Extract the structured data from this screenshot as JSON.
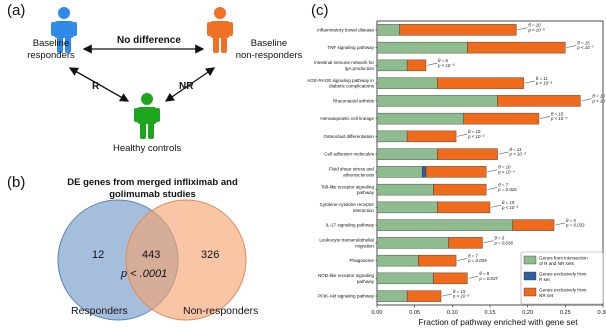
{
  "panel_a": {
    "label": "(a)",
    "responders_label_l1": "Baseline",
    "responders_label_l2": "responders",
    "nonresponders_label_l1": "Baseline",
    "nonresponders_label_l2": "non-responders",
    "no_difference": "No difference",
    "arrow_r": "R",
    "arrow_nr": "NR",
    "controls_label": "Healthy controls",
    "colors": {
      "responder": "#2e8ae6",
      "nonresponder": "#f07024",
      "control": "#1ea51e"
    }
  },
  "panel_b": {
    "label": "(b)",
    "title_l1": "DE genes from merged infliximab and",
    "title_l2": "golimumab studies",
    "left_only": "12",
    "overlap": "443",
    "right_only": "326",
    "pvalue": "p < .0001",
    "left_set": "Responders",
    "right_set": "Non-responders",
    "colors": {
      "left": "#6d96c7",
      "right": "#f4a36e"
    }
  },
  "panel_c": {
    "label": "(c)",
    "icons": {
      "annotation_arrow": "arrow-right-icon"
    }
  },
  "chart_data": {
    "type": "bar",
    "orientation": "horizontal",
    "xlabel": "Fraction of pathway enriched with gene set",
    "xlim": [
      0,
      0.3
    ],
    "xticks": [
      "0.00",
      "0.05",
      "0.10",
      "0.15",
      "0.20",
      "0.25",
      "0.30"
    ],
    "grid": false,
    "legend_position": "bottom-right",
    "categories": [
      {
        "lines": [
          "Inflammatory bowel disease"
        ],
        "n": "θ = 10",
        "p": "p < 10⁻⁵"
      },
      {
        "lines": [
          "TNF signaling pathway"
        ],
        "n": "θ = 15",
        "p": "p < 10⁻⁷"
      },
      {
        "lines": [
          "Intestinal immune network for",
          "IgA production"
        ],
        "n": "θ = 6",
        "p": "p < 10⁻³"
      },
      {
        "lines": [
          "AGE-RAGE signaling pathway in",
          "diabetic complications"
        ],
        "n": "θ = 11",
        "p": "p < 10⁻⁵"
      },
      {
        "lines": [
          "Rheumatoid arthritis"
        ],
        "n": "θ = 10",
        "p": "p < 10⁻⁴"
      },
      {
        "lines": [
          "Hematopoietic cell lineage"
        ],
        "n": "θ = 10",
        "p": "p < 10⁻⁴"
      },
      {
        "lines": [
          "Osteoclast differentiation"
        ],
        "n": "θ = 10",
        "p": "p < 10⁻³"
      },
      {
        "lines": [
          "Cell adhesion molecules"
        ],
        "n": "θ = 11",
        "p": "p < 10⁻³"
      },
      {
        "lines": [
          "Fluid shear stress and",
          "atherosclerosis"
        ],
        "n": "θ = 10",
        "p": "p < 10⁻³"
      },
      {
        "lines": [
          "Toll-like receptor signaling",
          "pathway"
        ],
        "n": "θ = 7",
        "p": "p = 0.026"
      },
      {
        "lines": [
          "Cytokine-cytokine receptor",
          "interaction"
        ],
        "n": "θ = 19",
        "p": "p < 10⁻³"
      },
      {
        "lines": [
          "IL-17 signaling pathway"
        ],
        "n": "θ = 5",
        "p": "p = 0.033"
      },
      {
        "lines": [
          "Leukocyte transendothelial",
          "migration"
        ],
        "n": "θ = 6",
        "p": "p = 0.036"
      },
      {
        "lines": [
          "Phagosome"
        ],
        "n": "θ = 7",
        "p": "p = 0.039"
      },
      {
        "lines": [
          "NOD-like receptor signaling",
          "pathway"
        ],
        "n": "θ = 8",
        "p": "p = 0.037"
      },
      {
        "lines": [
          "PI3K-Akt signaling pathway"
        ],
        "n": "θ = 15",
        "p": "p < 10⁻⁵"
      }
    ],
    "series": [
      {
        "name": "Genes from intersection of R and NR sets",
        "color": "#8fbc8f",
        "values": [
          0.03,
          0.12,
          0.04,
          0.08,
          0.16,
          0.115,
          0.04,
          0.08,
          0.06,
          0.075,
          0.08,
          0.18,
          0.095,
          0.055,
          0.075,
          0.04
        ]
      },
      {
        "name": "Genes exclusively from R set",
        "color": "#2f5f9e",
        "values": [
          0,
          0,
          0,
          0,
          0,
          0,
          0,
          0,
          0.005,
          0,
          0,
          0,
          0,
          0,
          0,
          0
        ]
      },
      {
        "name": "Genes exclusively from NR set",
        "color": "#ef6a1a",
        "values": [
          0.155,
          0.13,
          0.025,
          0.115,
          0.11,
          0.1,
          0.065,
          0.08,
          0.08,
          0.07,
          0.07,
          0.055,
          0.045,
          0.05,
          0.045,
          0.045
        ]
      }
    ]
  }
}
